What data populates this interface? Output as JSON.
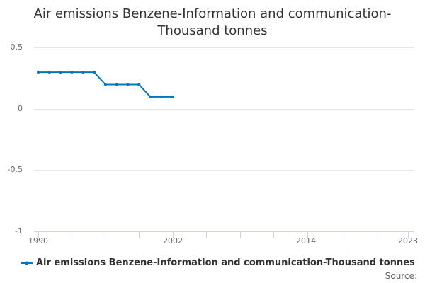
{
  "chart_data": {
    "type": "line",
    "title": "Air emissions Benzene-Information and communication-Thousand tonnes",
    "xlabel": "",
    "ylabel": "",
    "x": [
      1990,
      1991,
      1992,
      1993,
      1994,
      1995,
      1996,
      1997,
      1998,
      1999,
      2000,
      2001,
      2002
    ],
    "series": [
      {
        "name": "Air emissions Benzene-Information and communication-Thousand tonnes",
        "color": "#0077bb",
        "values": [
          0.3,
          0.3,
          0.3,
          0.3,
          0.3,
          0.3,
          0.2,
          0.2,
          0.2,
          0.2,
          0.1,
          0.1,
          0.1
        ]
      }
    ],
    "xlim": [
      1990,
      2023
    ],
    "ylim": [
      -1,
      0.5
    ],
    "y_ticks": [
      "0.5",
      "0",
      "-0.5",
      "-1"
    ],
    "x_tick_labels": [
      "1990",
      "2002",
      "2014",
      "2023"
    ],
    "grid": "horizontal",
    "legend_position": "bottom"
  },
  "title_line1": "Air emissions Benzene-Information and communication-",
  "title_line2": "Thousand tonnes",
  "legend_label": "Air emissions Benzene-Information and communication-Thousand tonnes",
  "source_label": "Source:"
}
